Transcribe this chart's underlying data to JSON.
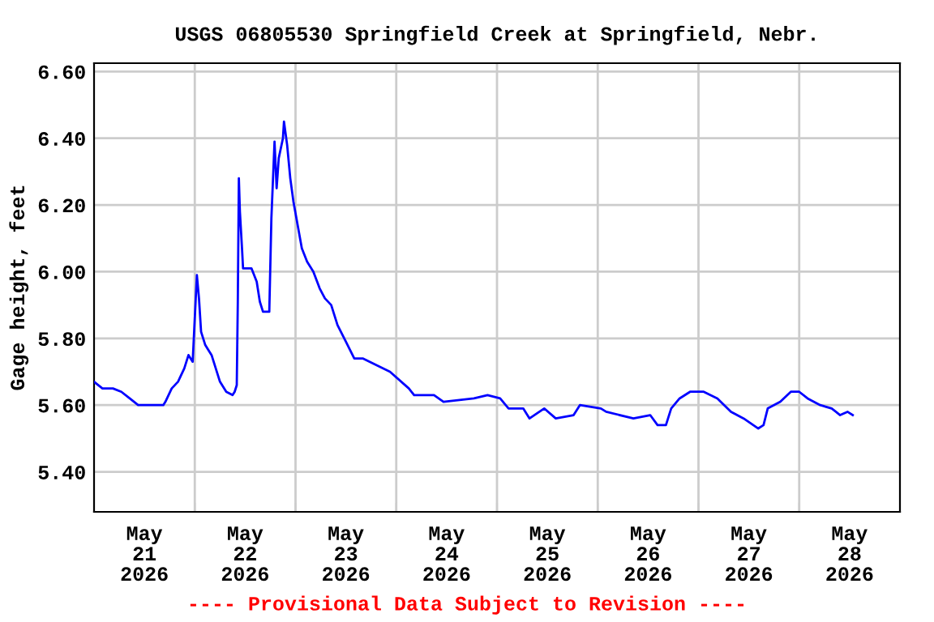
{
  "chart_data": {
    "type": "line",
    "title": "USGS 06805530 Springfield Creek at Springfield, Nebr.",
    "ylabel": "Gage height, feet",
    "annotations": [
      "---- Provisional Data Subject to Revision ----"
    ],
    "x": [
      "2026-05-21T00:00",
      "2026-05-21T02:00",
      "2026-05-21T04:30",
      "2026-05-21T06:30",
      "2026-05-21T08:30",
      "2026-05-21T10:30",
      "2026-05-21T14:30",
      "2026-05-21T16:30",
      "2026-05-21T17:00",
      "2026-05-21T18:30",
      "2026-05-21T20:00",
      "2026-05-21T21:30",
      "2026-05-21T22:30",
      "2026-05-21T23:30",
      "2026-05-22T00:30",
      "2026-05-22T01:00",
      "2026-05-22T01:30",
      "2026-05-22T02:30",
      "2026-05-22T04:00",
      "2026-05-22T05:00",
      "2026-05-22T06:00",
      "2026-05-22T07:30",
      "2026-05-22T09:00",
      "2026-05-22T09:30",
      "2026-05-22T10:00",
      "2026-05-22T10:15",
      "2026-05-22T10:30",
      "2026-05-22T10:45",
      "2026-05-22T11:15",
      "2026-05-22T11:30",
      "2026-05-22T13:30",
      "2026-05-22T14:45",
      "2026-05-22T15:30",
      "2026-05-22T16:15",
      "2026-05-22T17:45",
      "2026-05-22T18:15",
      "2026-05-22T19:00",
      "2026-05-22T19:30",
      "2026-05-22T20:00",
      "2026-05-22T21:00",
      "2026-05-22T21:15",
      "2026-05-22T22:00",
      "2026-05-22T22:45",
      "2026-05-22T23:30",
      "2026-05-23T00:30",
      "2026-05-23T01:30",
      "2026-05-23T02:45",
      "2026-05-23T04:15",
      "2026-05-23T05:45",
      "2026-05-23T07:00",
      "2026-05-23T08:30",
      "2026-05-23T10:00",
      "2026-05-23T12:00",
      "2026-05-23T14:00",
      "2026-05-23T16:00",
      "2026-05-23T22:30",
      "2026-05-24T03:00",
      "2026-05-24T04:15",
      "2026-05-24T09:00",
      "2026-05-24T11:15",
      "2026-05-24T18:30",
      "2026-05-24T21:45",
      "2026-05-25T00:45",
      "2026-05-25T02:45",
      "2026-05-25T06:15",
      "2026-05-25T07:45",
      "2026-05-25T11:15",
      "2026-05-25T14:00",
      "2026-05-25T18:15",
      "2026-05-25T19:45",
      "2026-05-26T00:45",
      "2026-05-26T02:00",
      "2026-05-26T08:30",
      "2026-05-26T12:30",
      "2026-05-26T14:15",
      "2026-05-26T16:15",
      "2026-05-26T17:30",
      "2026-05-26T19:30",
      "2026-05-26T22:00",
      "2026-05-27T01:15",
      "2026-05-27T04:30",
      "2026-05-27T07:45",
      "2026-05-27T10:45",
      "2026-05-27T14:15",
      "2026-05-27T15:30",
      "2026-05-27T16:30",
      "2026-05-27T19:30",
      "2026-05-27T22:00",
      "2026-05-28T00:00",
      "2026-05-28T02:00",
      "2026-05-28T05:00",
      "2026-05-28T07:45",
      "2026-05-28T09:45",
      "2026-05-28T11:30",
      "2026-05-28T12:45"
    ],
    "series": [
      {
        "color": "#0000ff",
        "values": [
          5.67,
          5.65,
          5.65,
          5.64,
          5.62,
          5.6,
          5.6,
          5.6,
          5.61,
          5.65,
          5.67,
          5.71,
          5.75,
          5.73,
          5.99,
          5.92,
          5.82,
          5.78,
          5.75,
          5.71,
          5.67,
          5.64,
          5.63,
          5.64,
          5.66,
          5.91,
          6.28,
          6.18,
          6.07,
          6.01,
          6.01,
          5.97,
          5.91,
          5.88,
          5.88,
          6.16,
          6.39,
          6.25,
          6.34,
          6.4,
          6.45,
          6.38,
          6.28,
          6.21,
          6.14,
          6.07,
          6.03,
          6.0,
          5.95,
          5.92,
          5.9,
          5.84,
          5.79,
          5.74,
          5.74,
          5.7,
          5.65,
          5.63,
          5.63,
          5.61,
          5.62,
          5.63,
          5.62,
          5.59,
          5.59,
          5.56,
          5.59,
          5.56,
          5.57,
          5.6,
          5.59,
          5.58,
          5.56,
          5.57,
          5.54,
          5.54,
          5.59,
          5.62,
          5.64,
          5.64,
          5.62,
          5.58,
          5.56,
          5.53,
          5.54,
          5.59,
          5.61,
          5.64,
          5.64,
          5.62,
          5.6,
          5.59,
          5.57,
          5.58,
          5.57
        ]
      }
    ],
    "xlim": [
      "2026-05-21T00:00",
      "2026-05-29T00:00"
    ],
    "xticks": [
      {
        "value": "2026-05-21T12:00",
        "label": "May\n21\n2026"
      },
      {
        "value": "2026-05-22T00:00",
        "label": null
      },
      {
        "value": "2026-05-22T12:00",
        "label": "May\n22\n2026"
      },
      {
        "value": "2026-05-23T00:00",
        "label": null
      },
      {
        "value": "2026-05-23T12:00",
        "label": "May\n23\n2026"
      },
      {
        "value": "2026-05-24T00:00",
        "label": null
      },
      {
        "value": "2026-05-24T12:00",
        "label": "May\n24\n2026"
      },
      {
        "value": "2026-05-25T00:00",
        "label": null
      },
      {
        "value": "2026-05-25T12:00",
        "label": "May\n25\n2026"
      },
      {
        "value": "2026-05-26T00:00",
        "label": null
      },
      {
        "value": "2026-05-26T12:00",
        "label": "May\n26\n2026"
      },
      {
        "value": "2026-05-27T00:00",
        "label": null
      },
      {
        "value": "2026-05-27T12:00",
        "label": "May\n27\n2026"
      },
      {
        "value": "2026-05-28T00:00",
        "label": null
      },
      {
        "value": "2026-05-28T12:00",
        "label": "May\n28\n2026"
      }
    ],
    "ylim": [
      5.28,
      6.625
    ],
    "yticks": [
      {
        "value": 5.4,
        "label": "5.40"
      },
      {
        "value": 5.6,
        "label": "5.60"
      },
      {
        "value": 5.8,
        "label": "5.80"
      },
      {
        "value": 6.0,
        "label": "6.00"
      },
      {
        "value": 6.2,
        "label": "6.20"
      },
      {
        "value": 6.4,
        "label": "6.40"
      },
      {
        "value": 6.6,
        "label": "6.60"
      }
    ],
    "grid": true,
    "marker": "none",
    "line_style": "solid"
  }
}
